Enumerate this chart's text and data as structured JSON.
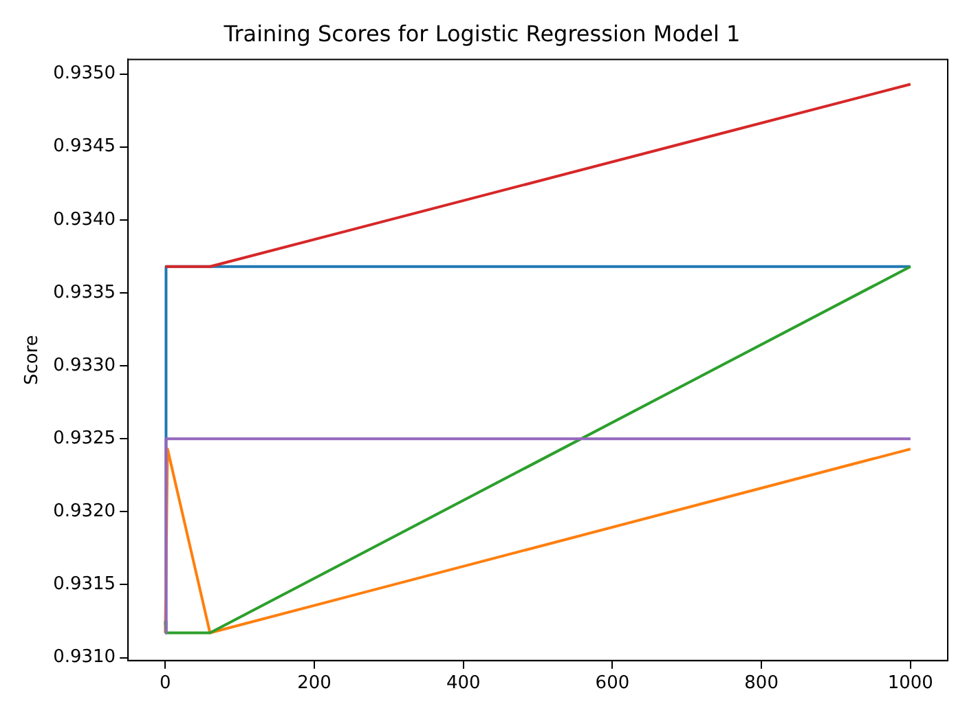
{
  "chart_data": {
    "type": "line",
    "title": "Training Scores for Logistic Regression Model 1",
    "ylabel": "Score",
    "series": [
      {
        "color": "#1f77b4",
        "x": [
          0,
          1,
          60,
          1000
        ],
        "values": [
          0.93117,
          0.93368,
          0.93368,
          0.93368
        ]
      },
      {
        "color": "#ff7f0e",
        "x": [
          0,
          3,
          60,
          1000
        ],
        "values": [
          0.93117,
          0.93243,
          0.93117,
          0.93243
        ]
      },
      {
        "color": "#2ca02c",
        "x": [
          0,
          1,
          60,
          1000
        ],
        "values": [
          0.93125,
          0.93117,
          0.93117,
          0.93368
        ]
      },
      {
        "color": "#d62728",
        "x": [
          0,
          60,
          1000
        ],
        "values": [
          0.93368,
          0.93368,
          0.93493
        ]
      },
      {
        "color": "#9467bd",
        "x": [
          0,
          1,
          1000
        ],
        "values": [
          0.93117,
          0.9325,
          0.9325
        ]
      }
    ],
    "xlim": [
      -50,
      1050
    ],
    "xticks": [
      0,
      200,
      400,
      600,
      800,
      1000
    ],
    "ylim": [
      0.93098,
      0.9351
    ],
    "yticks": [
      {
        "value": 0.931,
        "label": "0.9310"
      },
      {
        "value": 0.9315,
        "label": "0.9315"
      },
      {
        "value": 0.932,
        "label": "0.9320"
      },
      {
        "value": 0.9325,
        "label": "0.9325"
      },
      {
        "value": 0.933,
        "label": "0.9330"
      },
      {
        "value": 0.9335,
        "label": "0.9335"
      },
      {
        "value": 0.934,
        "label": "0.9340"
      },
      {
        "value": 0.9345,
        "label": "0.9345"
      },
      {
        "value": 0.935,
        "label": "0.9350"
      }
    ],
    "grid": false,
    "legend": false,
    "marker": "none",
    "line_style": "solid"
  }
}
